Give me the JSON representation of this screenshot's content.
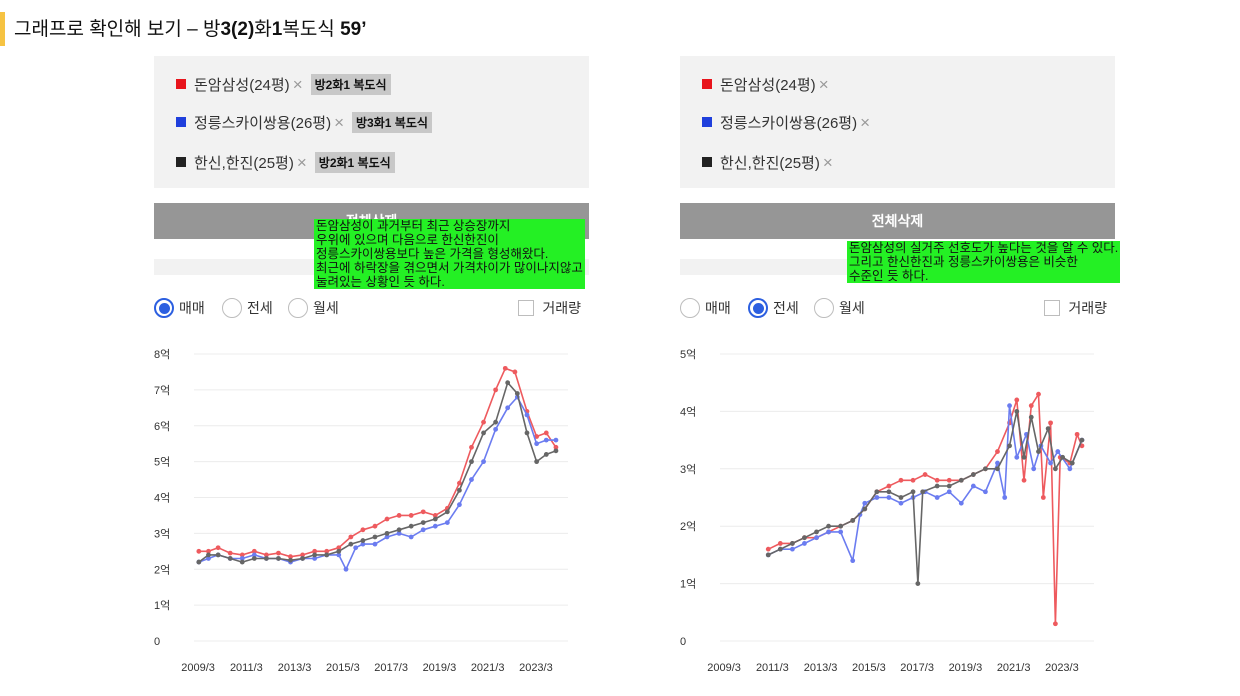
{
  "page_title": {
    "prefix": "그래프로 확인해 보기 – 방",
    "strong_parts": [
      "3(2)",
      "1",
      "59’"
    ],
    "mid1": "화",
    "mid2": "복도식 "
  },
  "legend_items": [
    {
      "name": "돈암삼성(24평)",
      "x": "×",
      "tag": "방2화1 복도식",
      "color": "#e8141c"
    },
    {
      "name": "정릉스카이쌍용(26평)",
      "x": "×",
      "tag": "방3화1 복도식",
      "color": "#1f3fdc"
    },
    {
      "name": "한신,한진(25평)",
      "x": "×",
      "tag": "방2화1 복도식",
      "color": "#222222"
    }
  ],
  "buttons": {
    "delete_all": "전체삭제"
  },
  "options": {
    "sale": "매매",
    "jeonse": "전세",
    "monthly": "월세",
    "volume": "거래량"
  },
  "annotations": {
    "left": "돈암삼성이 과거부터 최근 상승장까지\n우위에 있으며 다음으로 한신한진이\n정릉스카이쌍용보다 높은 가격을 형성해왔다.\n최근에 하락장을 겪으면서 가격차이가 많이나지않고\n눌려있는 상황인 듯 하다.",
    "right": "돈암삼성의 실거주 선호도가 높다는 것을 알 수 있다.\n그리고 한신한진과 정릉스카이쌍용은 비슷한\n수준인 듯 하다."
  },
  "colors": {
    "series1": "#ee5a5e",
    "series2": "#6b7cf0",
    "series3": "#666666",
    "accent": "#f6c342"
  },
  "chart_data": [
    {
      "type": "line",
      "name": "매매",
      "yunit": "억",
      "ylim": [
        0,
        8
      ],
      "yticks": [
        0,
        1,
        2,
        3,
        4,
        5,
        6,
        7,
        8
      ],
      "ytick_labels": [
        "0",
        "1억",
        "2억",
        "3억",
        "4억",
        "5억",
        "6억",
        "7억",
        "8억"
      ],
      "xlim": [
        2009.0,
        2024.5
      ],
      "xticks": [
        2009.17,
        2011.17,
        2013.17,
        2015.17,
        2017.17,
        2019.17,
        2021.17,
        2023.17
      ],
      "xtick_labels": [
        "2009/3",
        "2011/3",
        "2013/3",
        "2015/3",
        "2017/3",
        "2019/3",
        "2021/3",
        "2023/3"
      ],
      "series": [
        {
          "name": "돈암삼성(24평)",
          "color": "#ee5a5e",
          "points": [
            [
              2009.2,
              2.5
            ],
            [
              2009.6,
              2.5
            ],
            [
              2010.0,
              2.6
            ],
            [
              2010.5,
              2.45
            ],
            [
              2011.0,
              2.4
            ],
            [
              2011.5,
              2.5
            ],
            [
              2012.0,
              2.4
            ],
            [
              2012.5,
              2.45
            ],
            [
              2013.0,
              2.35
            ],
            [
              2013.5,
              2.4
            ],
            [
              2014.0,
              2.5
            ],
            [
              2014.5,
              2.5
            ],
            [
              2015.0,
              2.6
            ],
            [
              2015.5,
              2.9
            ],
            [
              2016.0,
              3.1
            ],
            [
              2016.5,
              3.2
            ],
            [
              2017.0,
              3.4
            ],
            [
              2017.5,
              3.5
            ],
            [
              2018.0,
              3.5
            ],
            [
              2018.5,
              3.6
            ],
            [
              2019.0,
              3.5
            ],
            [
              2019.5,
              3.7
            ],
            [
              2020.0,
              4.4
            ],
            [
              2020.5,
              5.4
            ],
            [
              2021.0,
              6.1
            ],
            [
              2021.5,
              7.0
            ],
            [
              2021.9,
              7.6
            ],
            [
              2022.3,
              7.5
            ],
            [
              2022.8,
              6.4
            ],
            [
              2023.2,
              5.7
            ],
            [
              2023.6,
              5.8
            ],
            [
              2024.0,
              5.4
            ]
          ]
        },
        {
          "name": "정릉스카이쌍용(26평)",
          "color": "#6b7cf0",
          "points": [
            [
              2009.2,
              2.2
            ],
            [
              2009.6,
              2.3
            ],
            [
              2010.0,
              2.4
            ],
            [
              2010.5,
              2.3
            ],
            [
              2011.0,
              2.3
            ],
            [
              2011.5,
              2.4
            ],
            [
              2012.0,
              2.3
            ],
            [
              2012.5,
              2.3
            ],
            [
              2013.0,
              2.2
            ],
            [
              2013.5,
              2.3
            ],
            [
              2014.0,
              2.3
            ],
            [
              2014.5,
              2.4
            ],
            [
              2015.0,
              2.4
            ],
            [
              2015.3,
              2.0
            ],
            [
              2015.7,
              2.6
            ],
            [
              2016.0,
              2.7
            ],
            [
              2016.5,
              2.7
            ],
            [
              2017.0,
              2.9
            ],
            [
              2017.5,
              3.0
            ],
            [
              2018.0,
              2.9
            ],
            [
              2018.5,
              3.1
            ],
            [
              2019.0,
              3.2
            ],
            [
              2019.5,
              3.3
            ],
            [
              2020.0,
              3.8
            ],
            [
              2020.5,
              4.5
            ],
            [
              2021.0,
              5.0
            ],
            [
              2021.5,
              5.9
            ],
            [
              2022.0,
              6.5
            ],
            [
              2022.4,
              6.8
            ],
            [
              2022.8,
              6.3
            ],
            [
              2023.2,
              5.5
            ],
            [
              2023.6,
              5.6
            ],
            [
              2024.0,
              5.6
            ]
          ]
        },
        {
          "name": "한신,한진(25평)",
          "color": "#666666",
          "points": [
            [
              2009.2,
              2.2
            ],
            [
              2009.6,
              2.4
            ],
            [
              2010.0,
              2.4
            ],
            [
              2010.5,
              2.3
            ],
            [
              2011.0,
              2.2
            ],
            [
              2011.5,
              2.3
            ],
            [
              2012.0,
              2.3
            ],
            [
              2012.5,
              2.3
            ],
            [
              2013.0,
              2.25
            ],
            [
              2013.5,
              2.3
            ],
            [
              2014.0,
              2.4
            ],
            [
              2014.5,
              2.4
            ],
            [
              2015.0,
              2.5
            ],
            [
              2015.5,
              2.7
            ],
            [
              2016.0,
              2.8
            ],
            [
              2016.5,
              2.9
            ],
            [
              2017.0,
              3.0
            ],
            [
              2017.5,
              3.1
            ],
            [
              2018.0,
              3.2
            ],
            [
              2018.5,
              3.3
            ],
            [
              2019.0,
              3.4
            ],
            [
              2019.5,
              3.6
            ],
            [
              2020.0,
              4.2
            ],
            [
              2020.5,
              5.0
            ],
            [
              2021.0,
              5.8
            ],
            [
              2021.5,
              6.1
            ],
            [
              2022.0,
              7.2
            ],
            [
              2022.4,
              6.9
            ],
            [
              2022.8,
              5.8
            ],
            [
              2023.2,
              5.0
            ],
            [
              2023.6,
              5.2
            ],
            [
              2024.0,
              5.3
            ]
          ]
        }
      ]
    },
    {
      "type": "line",
      "name": "전세",
      "yunit": "억",
      "ylim": [
        0,
        5
      ],
      "yticks": [
        0,
        1,
        2,
        3,
        4,
        5
      ],
      "ytick_labels": [
        "0",
        "1억",
        "2억",
        "3억",
        "4억",
        "5억"
      ],
      "xlim": [
        2009.0,
        2024.5
      ],
      "xticks": [
        2009.17,
        2011.17,
        2013.17,
        2015.17,
        2017.17,
        2019.17,
        2021.17,
        2023.17
      ],
      "xtick_labels": [
        "2009/3",
        "2011/3",
        "2013/3",
        "2015/3",
        "2017/3",
        "2019/3",
        "2021/3",
        "2023/3"
      ],
      "series": [
        {
          "name": "돈암삼성(24평)",
          "color": "#ee5a5e",
          "points": [
            [
              2011.0,
              1.6
            ],
            [
              2011.5,
              1.7
            ],
            [
              2012.0,
              1.7
            ],
            [
              2012.5,
              1.8
            ],
            [
              2013.0,
              1.8
            ],
            [
              2013.5,
              1.9
            ],
            [
              2014.0,
              2.0
            ],
            [
              2014.5,
              2.1
            ],
            [
              2015.0,
              2.3
            ],
            [
              2015.5,
              2.6
            ],
            [
              2016.0,
              2.7
            ],
            [
              2016.5,
              2.8
            ],
            [
              2017.0,
              2.8
            ],
            [
              2017.5,
              2.9
            ],
            [
              2018.0,
              2.8
            ],
            [
              2018.5,
              2.8
            ],
            [
              2019.0,
              2.8
            ],
            [
              2019.5,
              2.9
            ],
            [
              2020.0,
              3.0
            ],
            [
              2020.5,
              3.3
            ],
            [
              2021.0,
              3.8
            ],
            [
              2021.3,
              4.2
            ],
            [
              2021.6,
              2.8
            ],
            [
              2021.9,
              4.1
            ],
            [
              2022.2,
              4.3
            ],
            [
              2022.4,
              2.5
            ],
            [
              2022.7,
              3.8
            ],
            [
              2022.9,
              0.3
            ],
            [
              2023.1,
              3.2
            ],
            [
              2023.5,
              3.1
            ],
            [
              2023.8,
              3.6
            ],
            [
              2024.0,
              3.4
            ]
          ]
        },
        {
          "name": "정릉스카이쌍용(26평)",
          "color": "#6b7cf0",
          "points": [
            [
              2011.0,
              1.5
            ],
            [
              2011.5,
              1.6
            ],
            [
              2012.0,
              1.6
            ],
            [
              2012.5,
              1.7
            ],
            [
              2013.0,
              1.8
            ],
            [
              2013.5,
              1.9
            ],
            [
              2014.0,
              1.9
            ],
            [
              2014.5,
              1.4
            ],
            [
              2014.8,
              2.2
            ],
            [
              2015.0,
              2.4
            ],
            [
              2015.5,
              2.5
            ],
            [
              2016.0,
              2.5
            ],
            [
              2016.5,
              2.4
            ],
            [
              2017.0,
              2.5
            ],
            [
              2017.5,
              2.6
            ],
            [
              2018.0,
              2.5
            ],
            [
              2018.5,
              2.6
            ],
            [
              2019.0,
              2.4
            ],
            [
              2019.5,
              2.7
            ],
            [
              2020.0,
              2.6
            ],
            [
              2020.5,
              3.1
            ],
            [
              2020.8,
              2.5
            ],
            [
              2021.0,
              4.1
            ],
            [
              2021.3,
              3.2
            ],
            [
              2021.7,
              3.6
            ],
            [
              2022.0,
              3.0
            ],
            [
              2022.3,
              3.4
            ],
            [
              2022.7,
              3.1
            ],
            [
              2023.0,
              3.3
            ],
            [
              2023.5,
              3.0
            ],
            [
              2024.0,
              3.5
            ]
          ]
        },
        {
          "name": "한신,한진(25평)",
          "color": "#666666",
          "points": [
            [
              2011.0,
              1.5
            ],
            [
              2011.5,
              1.6
            ],
            [
              2012.0,
              1.7
            ],
            [
              2012.5,
              1.8
            ],
            [
              2013.0,
              1.9
            ],
            [
              2013.5,
              2.0
            ],
            [
              2014.0,
              2.0
            ],
            [
              2014.5,
              2.1
            ],
            [
              2015.0,
              2.3
            ],
            [
              2015.5,
              2.6
            ],
            [
              2016.0,
              2.6
            ],
            [
              2016.5,
              2.5
            ],
            [
              2017.0,
              2.6
            ],
            [
              2017.2,
              1.0
            ],
            [
              2017.4,
              2.6
            ],
            [
              2018.0,
              2.7
            ],
            [
              2018.5,
              2.7
            ],
            [
              2019.0,
              2.8
            ],
            [
              2019.5,
              2.9
            ],
            [
              2020.0,
              3.0
            ],
            [
              2020.5,
              3.0
            ],
            [
              2021.0,
              3.4
            ],
            [
              2021.3,
              4.0
            ],
            [
              2021.6,
              3.2
            ],
            [
              2021.9,
              3.9
            ],
            [
              2022.2,
              3.3
            ],
            [
              2022.6,
              3.7
            ],
            [
              2022.9,
              3.0
            ],
            [
              2023.2,
              3.2
            ],
            [
              2023.6,
              3.1
            ],
            [
              2024.0,
              3.5
            ]
          ]
        }
      ]
    }
  ]
}
